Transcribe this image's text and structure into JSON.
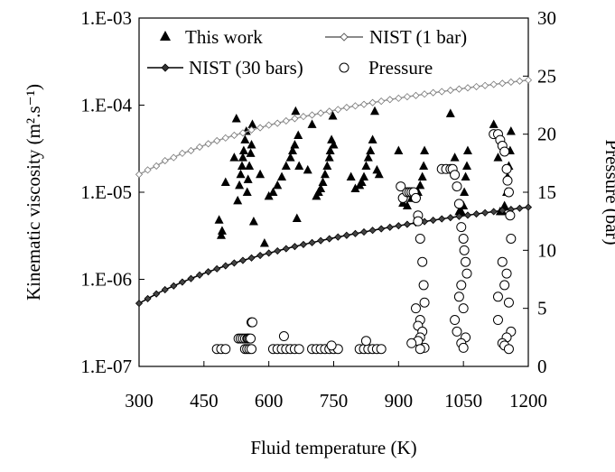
{
  "chart_data": {
    "type": "scatter",
    "title": "",
    "xlabel": "Fluid temperature (K)",
    "ylabel_left": "Kinematic viscosity (m².s⁻¹)",
    "ylabel_right": "Pressure (bar)",
    "x_ticks": [
      "300",
      "450",
      "600",
      "750",
      "900",
      "1050",
      "1200"
    ],
    "x_tick_values": [
      300,
      450,
      600,
      750,
      900,
      1050,
      1200
    ],
    "y_left_ticks": [
      "1.E-07",
      "1.E-06",
      "1.E-05",
      "1.E-04",
      "1.E-03"
    ],
    "y_left_tick_values": [
      1e-07,
      1e-06,
      1e-05,
      0.0001,
      0.001
    ],
    "y_right_ticks": [
      "0",
      "5",
      "10",
      "15",
      "20",
      "25",
      "30"
    ],
    "y_right_tick_values": [
      0,
      5,
      10,
      15,
      20,
      25,
      30
    ],
    "xlim": [
      300,
      1200
    ],
    "ylim_left": [
      1e-07,
      0.001
    ],
    "y_left_scale": "log",
    "ylim_right": [
      0,
      30
    ],
    "grid": false,
    "legend_position": "top",
    "series": [
      {
        "name": "This work",
        "axis": "left",
        "marker": "filled-triangle",
        "x": [
          485,
          490,
          492,
          500,
          520,
          525,
          528,
          532,
          535,
          538,
          540,
          542,
          545,
          548,
          550,
          552,
          555,
          558,
          560,
          562,
          565,
          580,
          590,
          600,
          610,
          620,
          630,
          640,
          650,
          655,
          660,
          662,
          665,
          668,
          670,
          690,
          700,
          710,
          715,
          720,
          725,
          730,
          735,
          740,
          742,
          745,
          748,
          750,
          790,
          800,
          810,
          815,
          820,
          825,
          830,
          835,
          840,
          845,
          850,
          855,
          900,
          910,
          920,
          930,
          940,
          945,
          950,
          955,
          958,
          960,
          1020,
          1030,
          1040,
          1045,
          1050,
          1052,
          1055,
          1058,
          1060,
          1120,
          1130,
          1135,
          1140,
          1145,
          1150,
          1152,
          1155,
          1158,
          1160
        ],
        "y": [
          4.8e-06,
          3.2e-06,
          3.6e-06,
          1.3e-05,
          2.5e-05,
          7e-05,
          8e-06,
          1.2e-05,
          1.6e-05,
          2e-05,
          2.5e-05,
          3e-05,
          4e-05,
          5e-05,
          1e-05,
          1.4e-05,
          2e-05,
          2.8e-05,
          3.5e-05,
          6e-05,
          4.6e-06,
          1.6e-05,
          2.6e-06,
          9e-06,
          1e-05,
          1.2e-05,
          1.5e-05,
          2e-05,
          2.5e-05,
          3e-05,
          3.5e-05,
          8.5e-05,
          5e-06,
          4.5e-05,
          2e-05,
          1.8e-05,
          6e-05,
          9e-06,
          1e-05,
          1.1e-05,
          1.3e-05,
          1.6e-05,
          2e-05,
          2.5e-05,
          3e-05,
          4e-05,
          7.5e-05,
          3.5e-05,
          1.5e-05,
          1.1e-05,
          1.2e-05,
          1.3e-05,
          1.5e-05,
          2e-05,
          2.5e-05,
          3e-05,
          4e-05,
          8.5e-05,
          1.8e-05,
          1.6e-05,
          3e-05,
          7.5e-06,
          7e-06,
          8.5e-06,
          9e-06,
          1e-05,
          1.2e-05,
          1.5e-05,
          2e-05,
          3e-05,
          8e-05,
          2.5e-05,
          6e-06,
          6e-06,
          7e-06,
          1e-05,
          1.5e-05,
          2e-05,
          3e-05,
          6e-05,
          2.5e-05,
          6e-06,
          6e-06,
          7e-06,
          1e-05,
          1.5e-05,
          2e-05,
          3e-05,
          5e-05
        ]
      },
      {
        "name": "NIST (1 bar)",
        "axis": "left",
        "marker": "open-diamond-line",
        "x": [
          300,
          320,
          340,
          360,
          380,
          400,
          420,
          440,
          460,
          480,
          500,
          520,
          540,
          560,
          580,
          600,
          620,
          640,
          660,
          680,
          700,
          720,
          740,
          760,
          780,
          800,
          820,
          840,
          860,
          880,
          900,
          920,
          940,
          960,
          980,
          1000,
          1020,
          1040,
          1060,
          1080,
          1100,
          1120,
          1140,
          1160,
          1180,
          1200
        ],
        "y": [
          1.6e-05,
          1.8e-05,
          2e-05,
          2.3e-05,
          2.5e-05,
          2.8e-05,
          3e-05,
          3.3e-05,
          3.6e-05,
          3.9e-05,
          4.2e-05,
          4.5e-05,
          4.8e-05,
          5.2e-05,
          5.5e-05,
          5.9e-05,
          6.2e-05,
          6.6e-05,
          7e-05,
          7.4e-05,
          7.7e-05,
          8.1e-05,
          8.5e-05,
          8.9e-05,
          9.4e-05,
          9.8e-05,
          0.000102,
          0.000107,
          0.000111,
          0.000116,
          0.00012,
          0.000125,
          0.000129,
          0.000134,
          0.000139,
          0.000143,
          0.000148,
          0.000153,
          0.000158,
          0.000163,
          0.000168,
          0.000173,
          0.000178,
          0.000184,
          0.000189,
          0.000194
        ]
      },
      {
        "name": "NIST (30 bars)",
        "axis": "left",
        "marker": "filled-diamond-line",
        "x": [
          300,
          320,
          340,
          360,
          380,
          400,
          420,
          440,
          460,
          480,
          500,
          520,
          540,
          560,
          580,
          600,
          620,
          640,
          660,
          680,
          700,
          720,
          740,
          760,
          780,
          800,
          820,
          840,
          860,
          880,
          900,
          920,
          940,
          960,
          980,
          1000,
          1020,
          1040,
          1060,
          1080,
          1100,
          1120,
          1140,
          1160,
          1180,
          1200
        ],
        "y": [
          5.3e-07,
          6e-07,
          6.8e-07,
          7.6e-07,
          8.4e-07,
          9.3e-07,
          1.02e-06,
          1.12e-06,
          1.22e-06,
          1.32e-06,
          1.43e-06,
          1.54e-06,
          1.65e-06,
          1.76e-06,
          1.88e-06,
          2e-06,
          2.12e-06,
          2.25e-06,
          2.38e-06,
          2.51e-06,
          2.64e-06,
          2.78e-06,
          2.92e-06,
          3.06e-06,
          3.2e-06,
          3.35e-06,
          3.5e-06,
          3.65e-06,
          3.8e-06,
          3.96e-06,
          4.12e-06,
          4.28e-06,
          4.44e-06,
          4.6e-06,
          4.77e-06,
          4.94e-06,
          5.11e-06,
          5.28e-06,
          5.45e-06,
          5.63e-06,
          5.81e-06,
          5.99e-06,
          6.17e-06,
          6.35e-06,
          6.54e-06,
          6.73e-06
        ]
      },
      {
        "name": "Pressure",
        "axis": "right",
        "marker": "open-circle",
        "x": [
          480,
          490,
          500,
          530,
          535,
          540,
          545,
          550,
          552,
          555,
          558,
          560,
          562,
          545,
          550,
          555,
          560,
          610,
          620,
          630,
          640,
          650,
          660,
          670,
          635,
          700,
          710,
          720,
          730,
          740,
          750,
          760,
          745,
          810,
          820,
          830,
          840,
          850,
          860,
          825,
          905,
          910,
          920,
          925,
          930,
          935,
          940,
          945,
          950,
          955,
          958,
          960,
          940,
          950,
          945,
          955,
          950,
          945,
          960,
          950,
          930,
          945,
          1000,
          1010,
          1020,
          1025,
          1030,
          1035,
          1040,
          1045,
          1050,
          1052,
          1055,
          1058,
          1045,
          1040,
          1050,
          1030,
          1035,
          1055,
          1045,
          1050,
          1120,
          1130,
          1135,
          1140,
          1145,
          1150,
          1152,
          1155,
          1158,
          1160,
          1140,
          1150,
          1145,
          1155,
          1130,
          1160,
          1150,
          1140,
          1145,
          1155,
          1130
        ],
        "y": [
          1.5,
          1.5,
          1.5,
          2.4,
          2.4,
          2.4,
          2.4,
          2.4,
          2.4,
          2.4,
          2.4,
          3.8,
          3.8,
          1.5,
          1.5,
          1.5,
          1.5,
          1.5,
          1.5,
          1.5,
          1.5,
          1.5,
          1.5,
          1.5,
          2.6,
          1.5,
          1.5,
          1.5,
          1.5,
          1.5,
          1.5,
          1.5,
          1.8,
          1.5,
          1.5,
          1.5,
          1.5,
          1.5,
          1.5,
          2.2,
          15.5,
          14.5,
          15,
          15,
          15,
          15,
          14.5,
          13,
          11,
          9,
          7,
          5.5,
          5,
          4,
          3.5,
          3,
          2.5,
          2.2,
          1.6,
          1.5,
          2,
          12.5,
          17,
          17,
          17,
          17,
          16.5,
          15.5,
          14,
          12,
          11,
          10,
          9,
          8,
          7,
          6,
          5,
          4,
          3,
          2.5,
          2,
          1.6,
          20,
          20,
          19.5,
          19,
          18.5,
          17,
          16,
          15,
          13,
          11,
          9,
          8,
          7,
          5.5,
          4,
          3,
          2.5,
          2,
          1.8,
          1.5,
          6
        ]
      }
    ]
  }
}
